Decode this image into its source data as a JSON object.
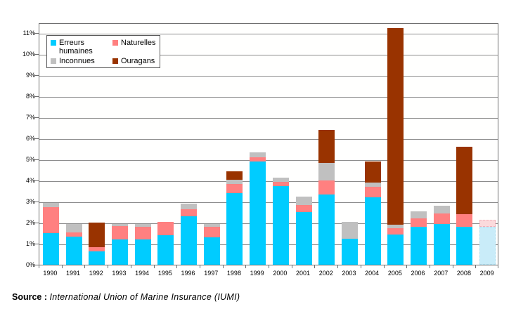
{
  "source": {
    "label": "Source :",
    "text": "International Union of Marine Insurance (IUMI)"
  },
  "legend": {
    "items": [
      {
        "label": "Erreurs humaines",
        "color": "#00CCFF"
      },
      {
        "label": "Naturelles",
        "color": "#FF8080"
      },
      {
        "label": "Inconnues",
        "color": "#C0C0C0"
      },
      {
        "label": "Ouragans",
        "color": "#993300"
      }
    ]
  },
  "chart_data": {
    "type": "bar",
    "stacked": true,
    "title": "",
    "xlabel": "",
    "ylabel": "",
    "grid": true,
    "legend_position": "top-left-inside",
    "ylim": [
      0,
      11.5
    ],
    "ytick_step": 1,
    "ytick_labels": [
      "0%",
      "1%",
      "2%",
      "3%",
      "4%",
      "5%",
      "6%",
      "7%",
      "8%",
      "9%",
      "10%",
      "11%"
    ],
    "categories": [
      "1990",
      "1991",
      "1992",
      "1993",
      "1994",
      "1995",
      "1996",
      "1997",
      "1998",
      "1999",
      "2000",
      "2001",
      "2002",
      "2003",
      "2004",
      "2005",
      "2006",
      "2007",
      "2008",
      "2009"
    ],
    "series": [
      {
        "name": "Erreurs humaines",
        "color": "#00CCFF",
        "values": [
          1.5,
          1.35,
          0.65,
          1.2,
          1.2,
          1.4,
          2.3,
          1.3,
          3.4,
          4.9,
          3.75,
          2.5,
          3.35,
          1.25,
          3.2,
          1.45,
          1.8,
          1.95,
          1.8,
          1.8
        ]
      },
      {
        "name": "Naturelles",
        "color": "#FF8080",
        "values": [
          1.25,
          0.2,
          0.2,
          0.65,
          0.6,
          0.65,
          0.35,
          0.5,
          0.45,
          0.2,
          0.2,
          0.35,
          0.65,
          0,
          0.5,
          0.3,
          0.4,
          0.5,
          0.6,
          0.35
        ]
      },
      {
        "name": "Inconnues",
        "color": "#C0C0C0",
        "values": [
          0.2,
          0.4,
          0,
          0.1,
          0.15,
          0,
          0.25,
          0.15,
          0.2,
          0.25,
          0.2,
          0.4,
          0.85,
          0.8,
          0.2,
          0.15,
          0.35,
          0.35,
          0,
          0
        ]
      },
      {
        "name": "Ouragans",
        "color": "#993300",
        "values": [
          0,
          0,
          1.15,
          0,
          0,
          0,
          0,
          0,
          0.4,
          0,
          0,
          0,
          1.55,
          0,
          1.0,
          9.35,
          0,
          0,
          3.2,
          0
        ]
      }
    ],
    "estimate": {
      "category": "2009",
      "fill_colors": {
        "Erreurs humaines": "#C9ECF9",
        "Naturelles": "#FBDADC"
      },
      "border_colors": {
        "Erreurs humaines": "#AFE0F2",
        "Naturelles": "#F2AEB8"
      }
    }
  }
}
